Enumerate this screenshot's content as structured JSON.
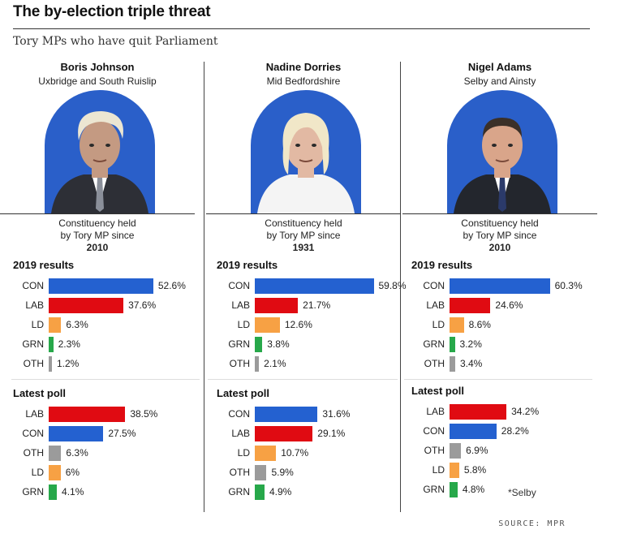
{
  "title": "The by-election triple threat",
  "subtitle": "Tory MPs who have quit Parliament",
  "held_line1": "Constituency held",
  "held_line2": "by Tory MP since",
  "section_2019": "2019 results",
  "section_poll": "Latest poll",
  "source": "SOURCE: MPR",
  "colors": {
    "CON": "#2461d0",
    "LAB": "#e00b12",
    "LD": "#f7a144",
    "GRN": "#27a84a",
    "OTH": "#9b9b9b",
    "portrait_bg": "#2a5fc9"
  },
  "chart_data": [
    {
      "type": "bar",
      "name": "Boris Johnson",
      "constituency": "Uxbridge and South Ruislip",
      "held_since": "2010",
      "results_2019": {
        "categories": [
          "CON",
          "LAB",
          "LD",
          "GRN",
          "OTH"
        ],
        "values": [
          52.6,
          37.6,
          6.3,
          2.3,
          1.2
        ],
        "labels": [
          "52.6%",
          "37.6%",
          "6.3%",
          "2.3%",
          "1.2%"
        ]
      },
      "latest_poll": {
        "categories": [
          "LAB",
          "CON",
          "OTH",
          "LD",
          "GRN"
        ],
        "values": [
          38.5,
          27.5,
          6.3,
          6,
          4.1
        ],
        "labels": [
          "38.5%",
          "27.5%",
          "6.3%",
          "6%",
          "4.1%"
        ]
      },
      "note": ""
    },
    {
      "type": "bar",
      "name": "Nadine Dorries",
      "constituency": "Mid Bedfordshire",
      "held_since": "1931",
      "results_2019": {
        "categories": [
          "CON",
          "LAB",
          "LD",
          "GRN",
          "OTH"
        ],
        "values": [
          59.8,
          21.7,
          12.6,
          3.8,
          2.1
        ],
        "labels": [
          "59.8%",
          "21.7%",
          "12.6%",
          "3.8%",
          "2.1%"
        ]
      },
      "latest_poll": {
        "categories": [
          "CON",
          "LAB",
          "LD",
          "OTH",
          "GRN"
        ],
        "values": [
          31.6,
          29.1,
          10.7,
          5.9,
          4.9
        ],
        "labels": [
          "31.6%",
          "29.1%",
          "10.7%",
          "5.9%",
          "4.9%"
        ]
      },
      "note": ""
    },
    {
      "type": "bar",
      "name": "Nigel Adams",
      "constituency": "Selby and Ainsty",
      "held_since": "2010",
      "results_2019": {
        "categories": [
          "CON",
          "LAB",
          "LD",
          "GRN",
          "OTH"
        ],
        "values": [
          60.3,
          24.6,
          8.6,
          3.2,
          3.4
        ],
        "labels": [
          "60.3%",
          "24.6%",
          "8.6%",
          "3.2%",
          "3.4%"
        ]
      },
      "latest_poll": {
        "categories": [
          "LAB",
          "CON",
          "OTH",
          "LD",
          "GRN"
        ],
        "values": [
          34.2,
          28.2,
          6.9,
          5.8,
          4.8
        ],
        "labels": [
          "34.2%",
          "28.2%",
          "6.9%",
          "5.8%",
          "4.8%"
        ]
      },
      "note": "*Selby"
    }
  ]
}
